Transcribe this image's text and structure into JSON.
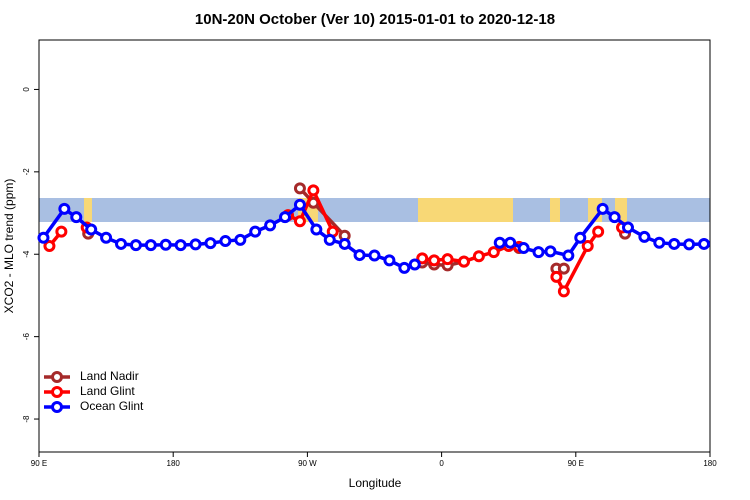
{
  "chart_data": {
    "type": "line",
    "title": "10N-20N October (Ver 10)   2015-01-01 to 2020-12-18",
    "x_label": "Longitude",
    "y_label": "XCO2 - MLO trend (ppm)",
    "xlim": [
      90,
      540
    ],
    "xticks": [
      {
        "value": 90,
        "label": "90 E"
      },
      180,
      {
        "value": 270,
        "label": "90 W"
      },
      {
        "value": 360,
        "label": "0"
      },
      {
        "value": 450,
        "label": "90 E"
      },
      {
        "value": 540,
        "label": "180"
      }
    ],
    "ylim": [
      -8.8,
      1.2
    ],
    "yticks": [
      0,
      -2,
      -4,
      -6,
      -8
    ],
    "legend": "bottom-left",
    "series": [
      {
        "name": "Land Nadir",
        "color": "#a52a2a",
        "x": [
          123,
          null,
          265,
          274,
          295,
          null,
          347,
          355,
          364,
          375,
          null,
          412,
          null,
          437,
          442,
          null,
          483
        ],
        "values": [
          -3.5,
          null,
          -2.4,
          -2.75,
          -3.55,
          null,
          -4.2,
          -4.25,
          -4.27,
          -4.18,
          null,
          -3.85,
          null,
          -4.35,
          -4.35,
          null,
          -3.5
        ]
      },
      {
        "name": "Land Glint",
        "color": "#ff0000",
        "x": [
          97,
          105,
          null,
          122,
          null,
          257,
          265,
          274,
          287,
          null,
          347,
          355,
          364,
          375,
          385,
          395,
          405,
          412,
          null,
          437,
          442,
          458,
          465,
          null,
          481
        ],
        "values": [
          -3.8,
          -3.45,
          null,
          -3.35,
          null,
          -3.05,
          -3.2,
          -2.45,
          -3.45,
          null,
          -4.1,
          -4.15,
          -4.12,
          -4.18,
          -4.05,
          -3.95,
          -3.8,
          -3.82,
          null,
          -4.55,
          -4.9,
          -3.8,
          -3.45,
          null,
          -3.35
        ]
      },
      {
        "name": "Ocean Glint",
        "color": "#0000ff",
        "x": [
          93,
          107,
          115,
          125,
          135,
          145,
          155,
          165,
          175,
          185,
          195,
          205,
          215,
          225,
          235,
          245,
          255,
          265,
          276,
          285,
          295,
          305,
          315,
          325,
          335,
          342,
          null,
          399,
          406,
          415,
          425,
          433,
          445,
          453,
          468,
          476,
          485,
          496,
          506,
          516,
          526,
          536
        ],
        "values": [
          -3.6,
          -2.9,
          -3.1,
          -3.4,
          -3.6,
          -3.75,
          -3.78,
          -3.78,
          -3.77,
          -3.78,
          -3.76,
          -3.73,
          -3.68,
          -3.65,
          -3.45,
          -3.3,
          -3.1,
          -2.8,
          -3.4,
          -3.65,
          -3.75,
          -4.02,
          -4.03,
          -4.15,
          -4.33,
          -4.25,
          null,
          -3.72,
          -3.72,
          -3.85,
          -3.95,
          -3.93,
          -4.03,
          -3.6,
          -2.9,
          -3.1,
          -3.35,
          -3.58,
          -3.72,
          -3.75,
          -3.76,
          -3.75
        ]
      }
    ]
  }
}
